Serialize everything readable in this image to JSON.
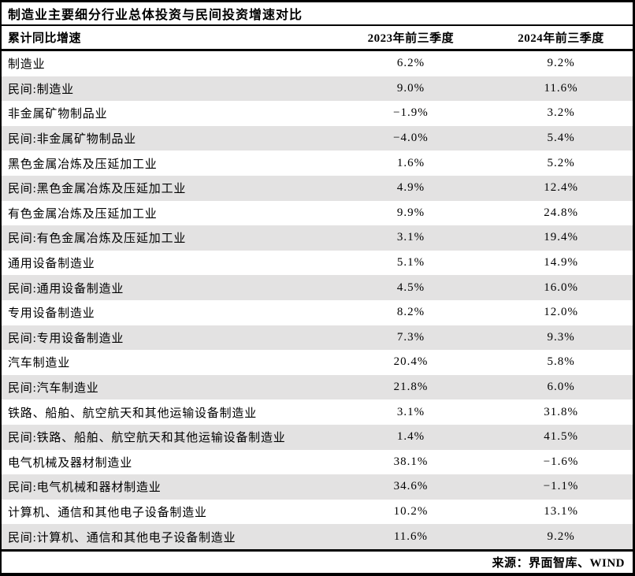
{
  "title": "制造业主要细分行业总体投资与民间投资增速对比",
  "footer": {
    "source": "来源：界面智库、WIND"
  },
  "colors": {
    "background": "#ffffff",
    "row_alternate": "#e3e2e2",
    "border": "#000000",
    "text": "#000000"
  },
  "chart_data": {
    "type": "table",
    "title": "制造业主要细分行业总体投资与民间投资增速对比",
    "columns": [
      "累计同比增速",
      "2023年前三季度",
      "2024年前三季度"
    ],
    "unit": "%",
    "categories": [
      "制造业",
      "民间:制造业",
      "非金属矿物制品业",
      "民间:非金属矿物制品业",
      "黑色金属冶炼及压延加工业",
      "民间:黑色金属冶炼及压延加工业",
      "有色金属冶炼及压延加工业",
      "民间:有色金属冶炼及压延加工业",
      "通用设备制造业",
      "民间:通用设备制造业",
      "专用设备制造业",
      "民间:专用设备制造业",
      "汽车制造业",
      "民间:汽车制造业",
      "铁路、船舶、航空航天和其他运输设备制造业",
      "民间:铁路、船舶、航空航天和其他运输设备制造业",
      "电气机械及器材制造业",
      "民间:电气机械和器材制造业",
      "计算机、通信和其他电子设备制造业",
      "民间:计算机、通信和其他电子设备制造业"
    ],
    "series": [
      {
        "name": "2023年前三季度",
        "values": [
          6.2,
          9.0,
          -1.9,
          -4.0,
          1.6,
          4.9,
          9.9,
          3.1,
          5.1,
          4.5,
          8.2,
          7.3,
          20.4,
          21.8,
          3.1,
          1.4,
          38.1,
          34.6,
          10.2,
          11.6
        ]
      },
      {
        "name": "2024年前三季度",
        "values": [
          9.2,
          11.6,
          3.2,
          5.4,
          5.2,
          12.4,
          24.8,
          19.4,
          14.9,
          16.0,
          12.0,
          9.3,
          5.8,
          6.0,
          31.8,
          41.5,
          -1.6,
          -1.1,
          13.1,
          9.2
        ]
      }
    ],
    "rows": [
      {
        "label": "制造业",
        "y2023": "6.2%",
        "y2024": "9.2%"
      },
      {
        "label": "民间:制造业",
        "y2023": "9.0%",
        "y2024": "11.6%"
      },
      {
        "label": "非金属矿物制品业",
        "y2023": "−1.9%",
        "y2024": "3.2%"
      },
      {
        "label": "民间:非金属矿物制品业",
        "y2023": "−4.0%",
        "y2024": "5.4%"
      },
      {
        "label": "黑色金属冶炼及压延加工业",
        "y2023": "1.6%",
        "y2024": "5.2%"
      },
      {
        "label": "民间:黑色金属冶炼及压延加工业",
        "y2023": "4.9%",
        "y2024": "12.4%"
      },
      {
        "label": "有色金属冶炼及压延加工业",
        "y2023": "9.9%",
        "y2024": "24.8%"
      },
      {
        "label": "民间:有色金属冶炼及压延加工业",
        "y2023": "3.1%",
        "y2024": "19.4%"
      },
      {
        "label": "通用设备制造业",
        "y2023": "5.1%",
        "y2024": "14.9%"
      },
      {
        "label": "民间:通用设备制造业",
        "y2023": "4.5%",
        "y2024": "16.0%"
      },
      {
        "label": "专用设备制造业",
        "y2023": "8.2%",
        "y2024": "12.0%"
      },
      {
        "label": "民间:专用设备制造业",
        "y2023": "7.3%",
        "y2024": "9.3%"
      },
      {
        "label": "汽车制造业",
        "y2023": "20.4%",
        "y2024": "5.8%"
      },
      {
        "label": "民间:汽车制造业",
        "y2023": "21.8%",
        "y2024": "6.0%"
      },
      {
        "label": "铁路、船舶、航空航天和其他运输设备制造业",
        "y2023": "3.1%",
        "y2024": "31.8%"
      },
      {
        "label": "民间:铁路、船舶、航空航天和其他运输设备制造业",
        "y2023": "1.4%",
        "y2024": "41.5%"
      },
      {
        "label": "电气机械及器材制造业",
        "y2023": "38.1%",
        "y2024": "−1.6%"
      },
      {
        "label": "民间:电气机械和器材制造业",
        "y2023": "34.6%",
        "y2024": "−1.1%"
      },
      {
        "label": "计算机、通信和其他电子设备制造业",
        "y2023": "10.2%",
        "y2024": "13.1%"
      },
      {
        "label": "民间:计算机、通信和其他电子设备制造业",
        "y2023": "11.6%",
        "y2024": "9.2%"
      }
    ]
  }
}
